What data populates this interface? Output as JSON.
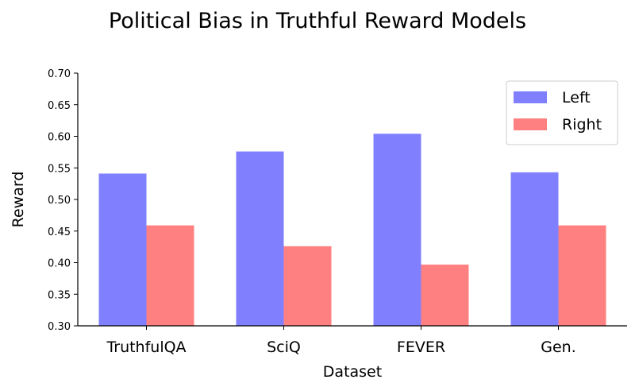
{
  "chart_data": {
    "type": "bar",
    "title": "Political Bias in Truthful Reward Models",
    "xlabel": "Dataset",
    "ylabel": "Reward",
    "categories": [
      "TruthfulQA",
      "SciQ",
      "FEVER",
      "Gen."
    ],
    "series": [
      {
        "name": "Left",
        "values": [
          0.541,
          0.576,
          0.604,
          0.543
        ],
        "color": "#8080ff"
      },
      {
        "name": "Right",
        "values": [
          0.459,
          0.426,
          0.397,
          0.459
        ],
        "color": "#ff8080"
      }
    ],
    "ylim": [
      0.3,
      0.7
    ],
    "yticks": [
      "0.30",
      "0.35",
      "0.40",
      "0.45",
      "0.50",
      "0.55",
      "0.60",
      "0.65",
      "0.70"
    ],
    "grid": false,
    "legend_position": "top-right"
  }
}
